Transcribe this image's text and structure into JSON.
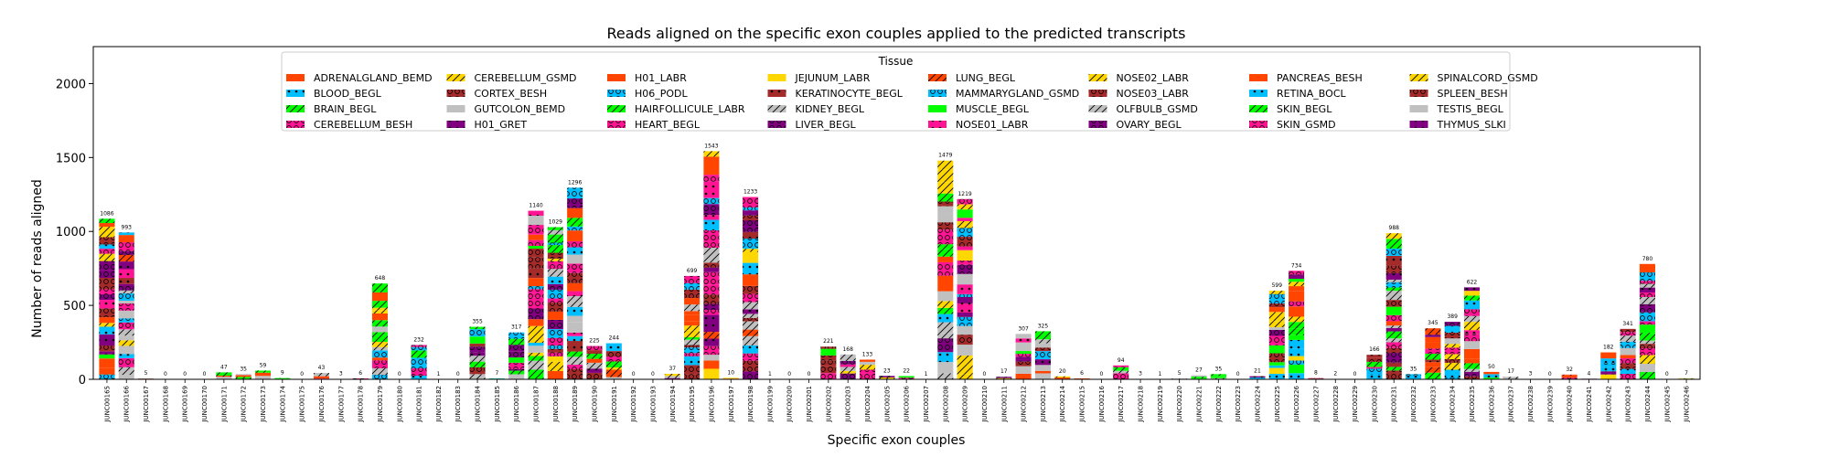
{
  "chart_data": {
    "type": "bar",
    "stacked": true,
    "title": "Reads aligned on the specific exon couples applied to the predicted transcripts",
    "xlabel": "Specific exon couples",
    "ylabel": "Number of reads aligned",
    "ylim": [
      0,
      2250
    ],
    "yticks": [
      0,
      500,
      1000,
      1500,
      2000
    ],
    "grid": false,
    "legend": {
      "title": "Tissue",
      "placement": "top-center",
      "entries": [
        {
          "name": "ADRENALGLAND_BEMD",
          "color": "#FF4500",
          "pattern": "solid"
        },
        {
          "name": "BLOOD_BEGL",
          "color": "#00BFFF",
          "pattern": "dots"
        },
        {
          "name": "BRAIN_BEGL",
          "color": "#00FF00",
          "pattern": "slash"
        },
        {
          "name": "CEREBELLUM_BESH",
          "color": "#FF1493",
          "pattern": "circles"
        },
        {
          "name": "CEREBELLUM_GSMD",
          "color": "#FFD700",
          "pattern": "slash"
        },
        {
          "name": "CORTEX_BESH",
          "color": "#A52A2A",
          "pattern": "circles"
        },
        {
          "name": "GUTCOLON_BEMD",
          "color": "#C0C0C0",
          "pattern": "solid"
        },
        {
          "name": "H01_GRET",
          "color": "#800080",
          "pattern": "dots"
        },
        {
          "name": "H01_LABR",
          "color": "#FF4500",
          "pattern": "solid"
        },
        {
          "name": "H06_PODL",
          "color": "#00BFFF",
          "pattern": "circles"
        },
        {
          "name": "HAIRFOLLICULE_LABR",
          "color": "#00FF00",
          "pattern": "slash"
        },
        {
          "name": "HEART_BEGL",
          "color": "#FF1493",
          "pattern": "circles"
        },
        {
          "name": "JEJUNUM_LABR",
          "color": "#FFD700",
          "pattern": "solid"
        },
        {
          "name": "KERATINOCYTE_BEGL",
          "color": "#A52A2A",
          "pattern": "dots"
        },
        {
          "name": "KIDNEY_BEGL",
          "color": "#C0C0C0",
          "pattern": "slash"
        },
        {
          "name": "LIVER_BEGL",
          "color": "#800080",
          "pattern": "circles"
        },
        {
          "name": "LUNG_BEGL",
          "color": "#FF4500",
          "pattern": "slash"
        },
        {
          "name": "MAMMARYGLAND_GSMD",
          "color": "#00BFFF",
          "pattern": "circles"
        },
        {
          "name": "MUSCLE_BEGL",
          "color": "#00FF00",
          "pattern": "solid"
        },
        {
          "name": "NOSE01_LABR",
          "color": "#FF1493",
          "pattern": "dots"
        },
        {
          "name": "NOSE02_LABR",
          "color": "#FFD700",
          "pattern": "slash"
        },
        {
          "name": "NOSE03_LABR",
          "color": "#A52A2A",
          "pattern": "circles"
        },
        {
          "name": "OLFBULB_GSMD",
          "color": "#C0C0C0",
          "pattern": "slash"
        },
        {
          "name": "OVARY_BEGL",
          "color": "#800080",
          "pattern": "circles"
        },
        {
          "name": "PANCREAS_BESH",
          "color": "#FF4500",
          "pattern": "solid"
        },
        {
          "name": "RETINA_BOCL",
          "color": "#00BFFF",
          "pattern": "dots"
        },
        {
          "name": "SKIN_BEGL",
          "color": "#00FF00",
          "pattern": "slash"
        },
        {
          "name": "SKIN_GSMD",
          "color": "#FF1493",
          "pattern": "circles"
        },
        {
          "name": "SPINALCORD_GSMD",
          "color": "#FFD700",
          "pattern": "slash"
        },
        {
          "name": "SPLEEN_BESH",
          "color": "#A52A2A",
          "pattern": "circles"
        },
        {
          "name": "TESTIS_BEGL",
          "color": "#C0C0C0",
          "pattern": "solid"
        },
        {
          "name": "THYMUS_SLKI",
          "color": "#800080",
          "pattern": "dots"
        }
      ]
    },
    "categories": [
      "JUNC00165",
      "JUNC00166",
      "JUNC00167",
      "JUNC00168",
      "JUNC00169",
      "JUNC00170",
      "JUNC00171",
      "JUNC00172",
      "JUNC00173",
      "JUNC00174",
      "JUNC00175",
      "JUNC00176",
      "JUNC00177",
      "JUNC00178",
      "JUNC00179",
      "JUNC00180",
      "JUNC00181",
      "JUNC00182",
      "JUNC00183",
      "JUNC00184",
      "JUNC00185",
      "JUNC00186",
      "JUNC00187",
      "JUNC00188",
      "JUNC00189",
      "JUNC00190",
      "JUNC00191",
      "JUNC00192",
      "JUNC00193",
      "JUNC00194",
      "JUNC00195",
      "JUNC00196",
      "JUNC00197",
      "JUNC00198",
      "JUNC00199",
      "JUNC00200",
      "JUNC00201",
      "JUNC00202",
      "JUNC00203",
      "JUNC00204",
      "JUNC00205",
      "JUNC00206",
      "JUNC00207",
      "JUNC00208",
      "JUNC00209",
      "JUNC00210",
      "JUNC00211",
      "JUNC00212",
      "JUNC00213",
      "JUNC00214",
      "JUNC00215",
      "JUNC00216",
      "JUNC00217",
      "JUNC00218",
      "JUNC00219",
      "JUNC00220",
      "JUNC00221",
      "JUNC00222",
      "JUNC00223",
      "JUNC00224",
      "JUNC00225",
      "JUNC00226",
      "JUNC00227",
      "JUNC00228",
      "JUNC00229",
      "JUNC00230",
      "JUNC00231",
      "JUNC00232",
      "JUNC00233",
      "JUNC00234",
      "JUNC00235",
      "JUNC00236",
      "JUNC00237",
      "JUNC00238",
      "JUNC00239",
      "JUNC00240",
      "JUNC00241",
      "JUNC00242",
      "JUNC00243",
      "JUNC00244",
      "JUNC00245",
      "JUNC00246"
    ],
    "totals": [
      1086,
      993,
      5,
      0,
      0,
      0,
      47,
      35,
      59,
      9,
      0,
      43,
      3,
      6,
      648,
      0,
      232,
      1,
      0,
      355,
      7,
      317,
      1140,
      1029,
      1296,
      225,
      244,
      0,
      0,
      37,
      699,
      1543,
      10,
      1233,
      1,
      0,
      0,
      221,
      168,
      133,
      23,
      22,
      1,
      1479,
      1219,
      0,
      17,
      307,
      325,
      20,
      6,
      0,
      94,
      3,
      1,
      5,
      27,
      35,
      0,
      21,
      599,
      734,
      8,
      2,
      0,
      166,
      988,
      35,
      345,
      389,
      622,
      50,
      17,
      3,
      0,
      32,
      4,
      182,
      341,
      780,
      0,
      7
    ]
  }
}
